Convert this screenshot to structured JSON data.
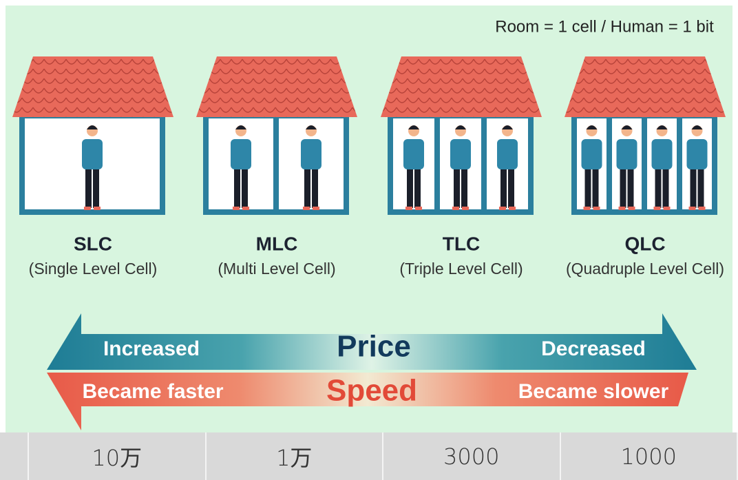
{
  "caption": "Room = 1 cell / Human = 1 bit",
  "houses": [
    {
      "name": "SLC",
      "full": "(Single Level Cell)"
    },
    {
      "name": "MLC",
      "full": "(Multi Level Cell)"
    },
    {
      "name": "TLC",
      "full": "(Triple Level Cell)"
    },
    {
      "name": "QLC",
      "full": "(Quadruple Level Cell)"
    }
  ],
  "price": {
    "label": "Price",
    "left": "Increased",
    "right": "Decreased"
  },
  "speed": {
    "label": "Speed",
    "left": "Became faster",
    "right": "Became slower"
  },
  "table": {
    "rows": [
      [
        "10万",
        "1万",
        "3000",
        "1000"
      ]
    ]
  }
}
